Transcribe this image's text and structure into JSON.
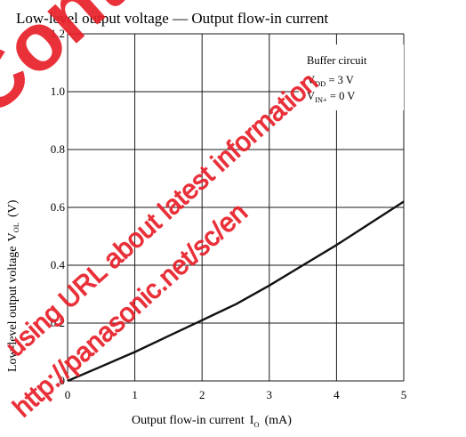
{
  "chart_data": {
    "type": "line",
    "title": "Low-level output voltage — Output flow-in current",
    "xlabel": "Output flow-in current",
    "xlabel_symbol": "I",
    "xlabel_symbol_sub": "O",
    "xlabel_unit": "(mA)",
    "ylabel": "Low-level output voltage",
    "ylabel_symbol": "V",
    "ylabel_symbol_sub": "OL",
    "ylabel_unit": "(V)",
    "xlim": [
      0,
      5
    ],
    "ylim": [
      0,
      1.2
    ],
    "x_ticks": [
      "0",
      "1",
      "2",
      "3",
      "4",
      "5"
    ],
    "y_ticks": [
      "0",
      "0.2",
      "0.4",
      "0.6",
      "0.8",
      "1.0",
      "1.2"
    ],
    "grid": true,
    "series": [
      {
        "x": [
          0,
          0.5,
          1,
          1.5,
          2,
          2.5,
          3,
          3.5,
          4,
          4.5,
          5
        ],
        "y": [
          0,
          0.05,
          0.1,
          0.155,
          0.21,
          0.265,
          0.33,
          0.4,
          0.47,
          0.545,
          0.62
        ]
      }
    ],
    "annotation": {
      "line1": "Buffer circuit",
      "line2_main": "V",
      "line2_sub": "DD",
      "line2_rest": " = 3 V",
      "line3_main": "V",
      "line3_sub": "IN+",
      "line3_rest": " = 0 V"
    }
  },
  "watermark": {
    "big_text": "Continue",
    "line1": "using URL about latest information",
    "line2": "http://panasonic.net/sc/en",
    "color": "#e8202a"
  }
}
